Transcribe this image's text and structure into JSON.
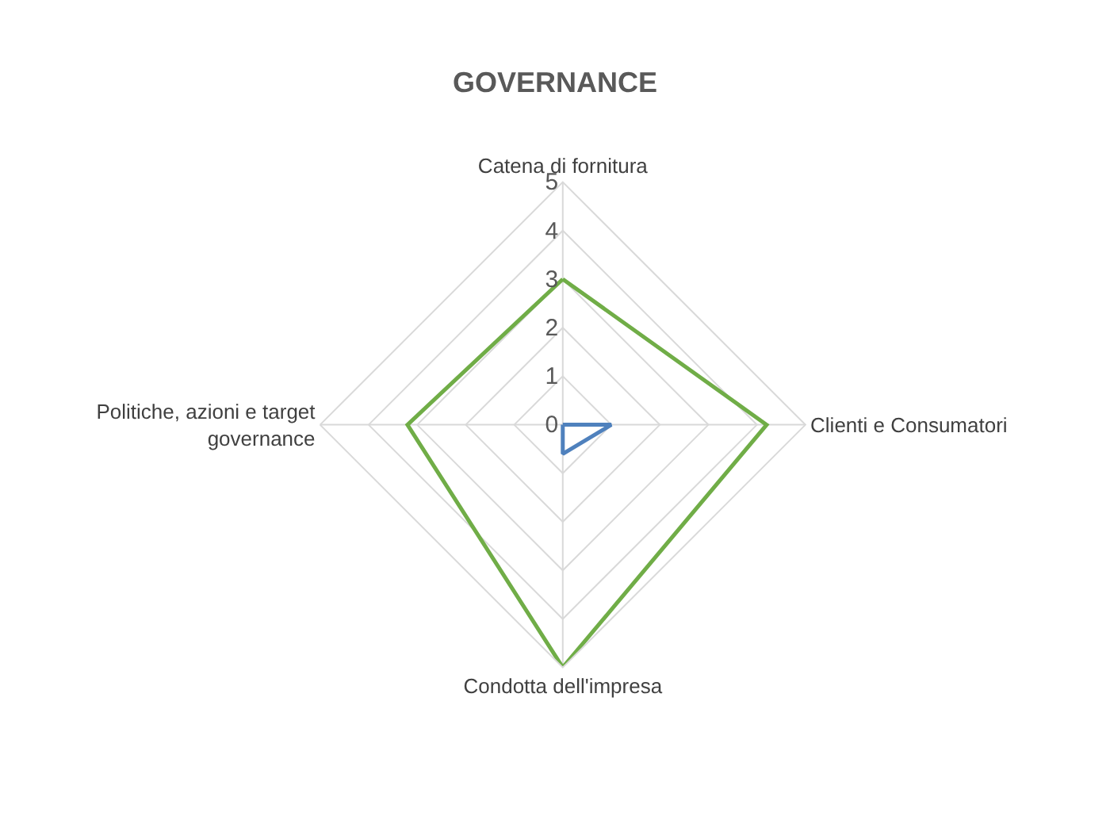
{
  "chart_data": {
    "type": "radar",
    "title": "GOVERNANCE",
    "categories": [
      "Catena di fornitura",
      "Clienti e Consumatori",
      "Condotta dell'impresa",
      "Politiche, azioni e target governance"
    ],
    "series": [
      {
        "color": "#4f81bd",
        "values": [
          0,
          1,
          0.6,
          0
        ]
      },
      {
        "color": "#70ad47",
        "values": [
          3,
          4.2,
          5,
          3.2
        ]
      }
    ],
    "ylim": [
      0,
      5
    ],
    "yticks": [
      0,
      1,
      2,
      3,
      4,
      5
    ],
    "grid": true,
    "marker": "none",
    "line_style": "solid"
  }
}
